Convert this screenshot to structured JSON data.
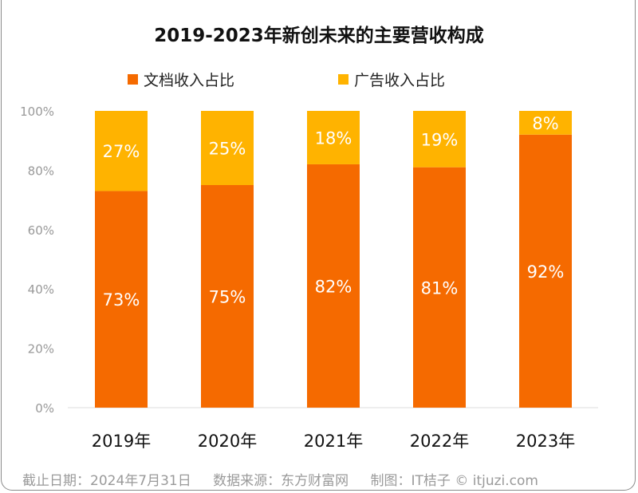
{
  "chart_data": {
    "type": "bar",
    "stacked": true,
    "title": "2019-2023年新创未来的主要营收构成",
    "categories": [
      "2019年",
      "2020年",
      "2021年",
      "2022年",
      "2023年"
    ],
    "series": [
      {
        "name": "文档收入占比",
        "values": [
          73,
          75,
          82,
          81,
          92
        ],
        "labels": [
          "73%",
          "75%",
          "82%",
          "81%",
          "92%"
        ],
        "color": "#F56A00"
      },
      {
        "name": "广告收入占比",
        "values": [
          27,
          25,
          18,
          19,
          8
        ],
        "labels": [
          "27%",
          "25%",
          "18%",
          "19%",
          "8%"
        ],
        "color": "#FFB300"
      }
    ],
    "ylim": [
      0,
      100
    ],
    "yticks": [
      "0%",
      "20%",
      "40%",
      "60%",
      "80%",
      "100%"
    ],
    "legend_position": "top",
    "grid": false
  },
  "footer": {
    "date": "截止日期：2024年7月31日",
    "source": "数据来源：东方财富网",
    "maker": "制图：IT桔子 © itjuzi.com"
  },
  "watermark": "IT桔子 ITJUZI.COM"
}
